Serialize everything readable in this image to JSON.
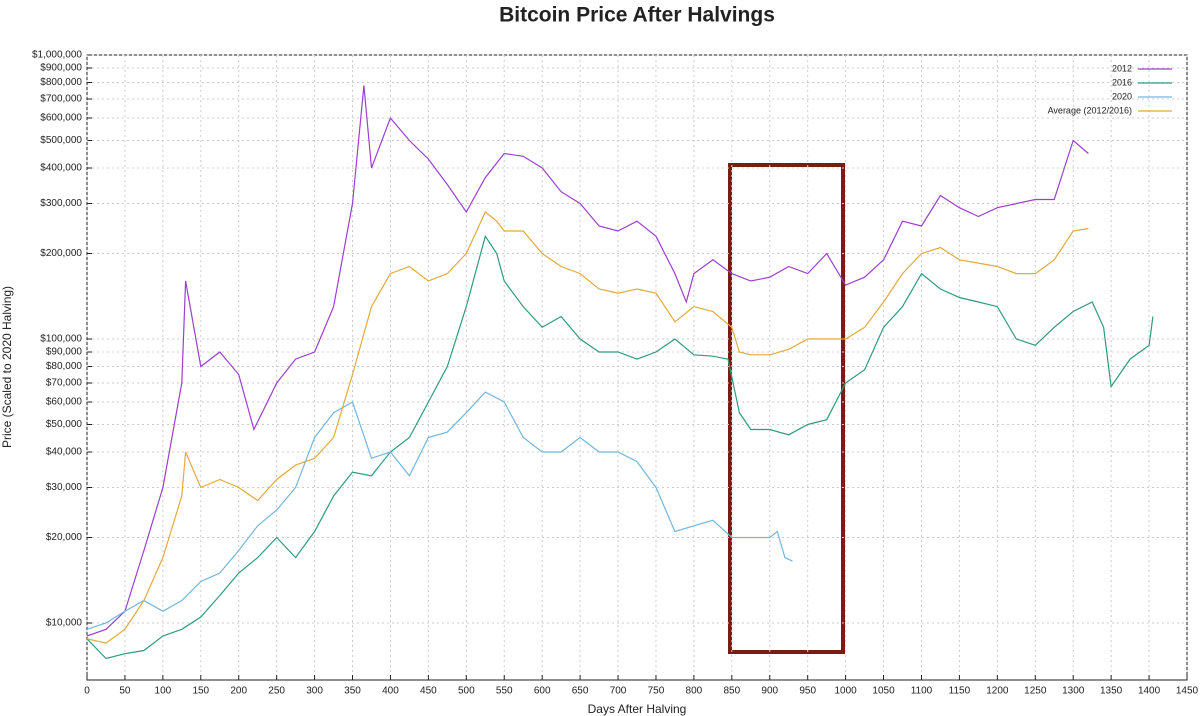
{
  "chart_data": {
    "type": "line",
    "title": "Bitcoin Price After Halvings",
    "xlabel": "Days After Halving",
    "ylabel": "Price (Scaled to 2020 Halving)",
    "log_y": true,
    "grid": true,
    "legend": "upper right",
    "xlim": [
      0,
      1450
    ],
    "ylim": [
      6300,
      1000000
    ],
    "xticks": [
      0,
      50,
      100,
      150,
      200,
      250,
      300,
      350,
      400,
      450,
      500,
      550,
      600,
      650,
      700,
      750,
      800,
      850,
      900,
      950,
      1000,
      1050,
      1100,
      1150,
      1200,
      1250,
      1300,
      1350,
      1400,
      1450
    ],
    "yticks": [
      {
        "value": 10000,
        "label": "$10,000"
      },
      {
        "value": 20000,
        "label": "$20,000"
      },
      {
        "value": 30000,
        "label": "$30,000"
      },
      {
        "value": 40000,
        "label": "$40,000"
      },
      {
        "value": 50000,
        "label": "$50,000"
      },
      {
        "value": 60000,
        "label": "$60,000"
      },
      {
        "value": 70000,
        "label": "$70,000"
      },
      {
        "value": 80000,
        "label": "$80,000"
      },
      {
        "value": 90000,
        "label": "$90,000"
      },
      {
        "value": 100000,
        "label": "$100,000"
      },
      {
        "value": 200000,
        "label": "$200,000"
      },
      {
        "value": 300000,
        "label": "$300,000"
      },
      {
        "value": 400000,
        "label": "$400,000"
      },
      {
        "value": 500000,
        "label": "$500,000"
      },
      {
        "value": 600000,
        "label": "$600,000"
      },
      {
        "value": 700000,
        "label": "$700,000"
      },
      {
        "value": 800000,
        "label": "$800,000"
      },
      {
        "value": 900000,
        "label": "$900,000"
      },
      {
        "value": 1000000,
        "label": "$1,000,000"
      }
    ],
    "series": [
      {
        "name": "2012",
        "color": "#9b3fcf",
        "x": [
          0,
          25,
          50,
          75,
          100,
          125,
          130,
          150,
          175,
          200,
          220,
          250,
          275,
          300,
          325,
          350,
          365,
          375,
          400,
          425,
          450,
          475,
          500,
          525,
          550,
          575,
          600,
          625,
          650,
          675,
          700,
          725,
          750,
          775,
          790,
          800,
          825,
          850,
          875,
          900,
          925,
          950,
          975,
          1000,
          1025,
          1050,
          1075,
          1100,
          1125,
          1150,
          1175,
          1200,
          1250,
          1275,
          1300,
          1320
        ],
        "values": [
          9000,
          9500,
          11000,
          18000,
          30000,
          70000,
          160000,
          80000,
          90000,
          75000,
          48000,
          70000,
          85000,
          90000,
          130000,
          300000,
          780000,
          400000,
          600000,
          500000,
          430000,
          350000,
          280000,
          370000,
          450000,
          440000,
          400000,
          330000,
          300000,
          250000,
          240000,
          260000,
          230000,
          170000,
          135000,
          170000,
          190000,
          170000,
          160000,
          165000,
          180000,
          170000,
          200000,
          155000,
          165000,
          190000,
          260000,
          250000,
          320000,
          290000,
          270000,
          290000,
          310000,
          310000,
          500000,
          450000
        ]
      },
      {
        "name": "2016",
        "color": "#2e9b7c",
        "x": [
          0,
          25,
          50,
          75,
          100,
          125,
          150,
          175,
          200,
          225,
          250,
          275,
          300,
          325,
          350,
          375,
          400,
          425,
          450,
          475,
          500,
          525,
          540,
          550,
          575,
          600,
          625,
          650,
          675,
          700,
          725,
          750,
          775,
          800,
          825,
          845,
          860,
          875,
          900,
          925,
          950,
          975,
          1000,
          1025,
          1050,
          1075,
          1100,
          1125,
          1150,
          1175,
          1200,
          1225,
          1250,
          1275,
          1300,
          1325,
          1340,
          1350,
          1375,
          1400,
          1405
        ],
        "values": [
          8800,
          7500,
          7800,
          8000,
          9000,
          9500,
          10500,
          12500,
          15000,
          17000,
          20000,
          17000,
          21000,
          28000,
          34000,
          33000,
          40000,
          45000,
          60000,
          80000,
          130000,
          230000,
          200000,
          160000,
          130000,
          110000,
          120000,
          100000,
          90000,
          90000,
          85000,
          90000,
          100000,
          88000,
          87000,
          85000,
          55000,
          48000,
          48000,
          46000,
          50000,
          52000,
          70000,
          78000,
          110000,
          130000,
          170000,
          150000,
          140000,
          135000,
          130000,
          100000,
          95000,
          110000,
          125000,
          135000,
          110000,
          68000,
          85000,
          95000,
          120000
        ]
      },
      {
        "name": "2020",
        "color": "#72b6de",
        "x": [
          0,
          25,
          50,
          75,
          100,
          125,
          150,
          175,
          200,
          225,
          250,
          275,
          300,
          325,
          350,
          375,
          400,
          425,
          450,
          475,
          500,
          525,
          550,
          575,
          600,
          625,
          650,
          675,
          700,
          725,
          750,
          775,
          800,
          825,
          850,
          875,
          900,
          910,
          920,
          930
        ],
        "values": [
          9500,
          10000,
          11000,
          12000,
          11000,
          12000,
          14000,
          15000,
          18000,
          22000,
          25000,
          30000,
          45000,
          55000,
          60000,
          38000,
          40000,
          33000,
          45000,
          47000,
          55000,
          65000,
          60000,
          45000,
          40000,
          40000,
          45000,
          40000,
          40000,
          37000,
          30000,
          21000,
          22000,
          23000,
          20000,
          20000,
          20000,
          21000,
          17000,
          16500
        ]
      },
      {
        "name": "Average (2012/2016)",
        "color": "#e3a93c",
        "x": [
          0,
          25,
          50,
          75,
          100,
          125,
          130,
          150,
          175,
          200,
          225,
          250,
          275,
          300,
          325,
          350,
          375,
          400,
          425,
          450,
          475,
          500,
          525,
          540,
          550,
          575,
          600,
          625,
          650,
          675,
          700,
          725,
          750,
          775,
          800,
          825,
          850,
          860,
          875,
          900,
          925,
          950,
          975,
          1000,
          1025,
          1050,
          1075,
          1100,
          1125,
          1150,
          1175,
          1200,
          1225,
          1250,
          1275,
          1300,
          1320
        ],
        "values": [
          8800,
          8500,
          9500,
          12000,
          17000,
          28000,
          40000,
          30000,
          32000,
          30000,
          27000,
          32000,
          36000,
          38000,
          45000,
          75000,
          130000,
          170000,
          180000,
          160000,
          170000,
          200000,
          280000,
          260000,
          240000,
          240000,
          200000,
          180000,
          170000,
          150000,
          145000,
          150000,
          145000,
          115000,
          130000,
          125000,
          110000,
          90000,
          88000,
          88000,
          92000,
          100000,
          100000,
          100000,
          110000,
          135000,
          170000,
          200000,
          210000,
          190000,
          185000,
          180000,
          170000,
          170000,
          190000,
          240000,
          245000
        ]
      }
    ]
  }
}
